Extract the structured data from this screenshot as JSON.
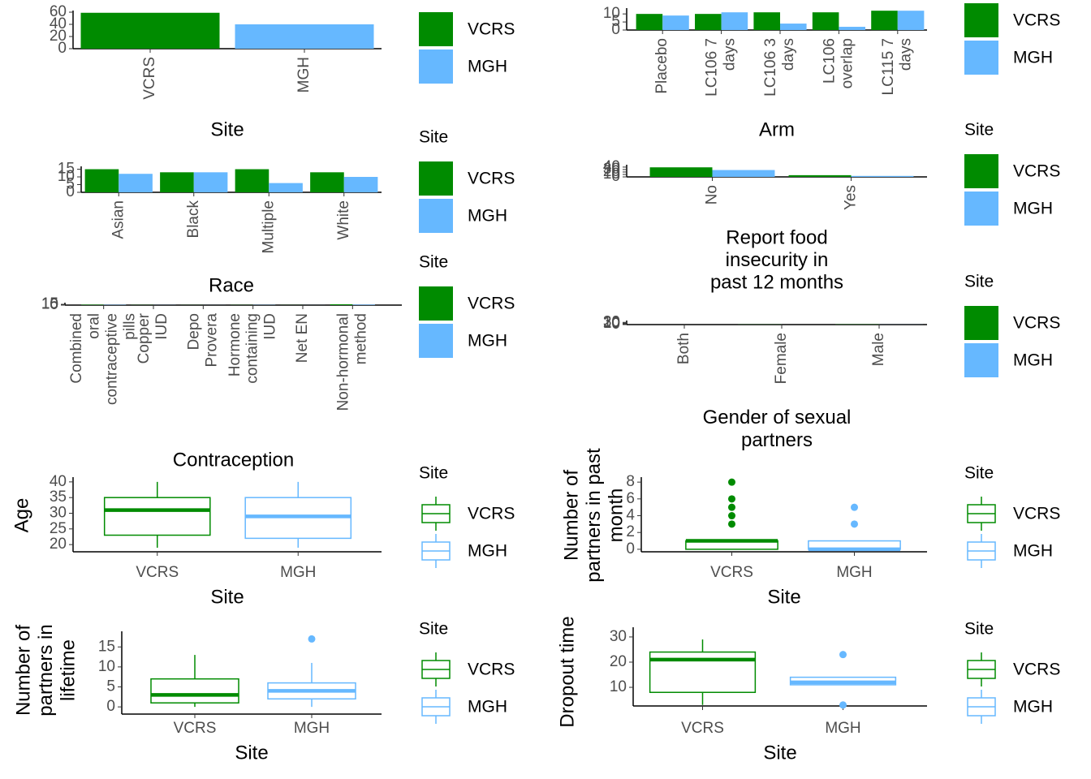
{
  "chart_data": [
    {
      "type": "bar",
      "dodge": false,
      "xlabel": "Site",
      "categories": [
        "VCRS",
        "MGH"
      ],
      "series": [
        {
          "name": "VCRS",
          "color": "#008b00",
          "values": [
            59,
            null
          ]
        },
        {
          "name": "MGH",
          "color": "#66b8ff",
          "values": [
            null,
            40
          ]
        }
      ],
      "ylim": [
        0,
        60
      ],
      "yticks": [
        0,
        20,
        40,
        60
      ]
    },
    {
      "type": "bar",
      "dodge": true,
      "xlabel": "Race",
      "legend_title": "Site",
      "categories": [
        "Asian",
        "Black",
        "Multiple",
        "White"
      ],
      "series": [
        {
          "name": "VCRS",
          "color": "#008b00",
          "values": [
            15,
            13,
            15,
            13
          ]
        },
        {
          "name": "MGH",
          "color": "#66b8ff",
          "values": [
            12,
            13,
            6,
            10
          ]
        }
      ],
      "ylim": [
        0,
        15.8
      ],
      "yticks": [
        0,
        5,
        10,
        15
      ]
    },
    {
      "type": "bar",
      "dodge": true,
      "xlabel": "Contraception",
      "legend_title": "Site",
      "categories": [
        "Combined\noral\ncontraceptive\npills",
        "Copper\nIUD",
        "Depo\nProvera",
        "Hormone\ncontaining\nIUD",
        "Net EN",
        "Non-hormonal\nmethod"
      ],
      "series": [
        {
          "name": "VCRS",
          "color": "#008b00",
          "values": [
            8,
            3,
            2,
            3,
            2,
            16
          ]
        },
        {
          "name": "MGH",
          "color": "#66b8ff",
          "values": [
            6,
            2,
            1,
            4,
            1,
            10
          ]
        }
      ],
      "ylim": [
        0,
        16
      ],
      "yticks": [
        0,
        5,
        10,
        15
      ]
    },
    {
      "type": "box",
      "xlabel": "Site",
      "ylabel": "Age",
      "legend_title": "Site",
      "categories": [
        "VCRS",
        "MGH"
      ],
      "series": [
        {
          "name": "VCRS",
          "color": "#008b00",
          "min": 19,
          "q1": 23,
          "median": 31,
          "q3": 35,
          "max": 40,
          "outliers": []
        },
        {
          "name": "MGH",
          "color": "#66b8ff",
          "min": 19,
          "q1": 22,
          "median": 29,
          "q3": 35,
          "max": 40,
          "outliers": []
        }
      ],
      "ylim": [
        17.7,
        41
      ],
      "yticks": [
        20,
        25,
        30,
        35,
        40
      ]
    },
    {
      "type": "box",
      "xlabel": "Site",
      "ylabel": "Number of\npartners in\nlifetime",
      "legend_title": "Site",
      "categories": [
        "VCRS",
        "MGH"
      ],
      "series": [
        {
          "name": "VCRS",
          "color": "#008b00",
          "min": 0,
          "q1": 1,
          "median": 3,
          "q3": 7,
          "max": 13,
          "outliers": []
        },
        {
          "name": "MGH",
          "color": "#66b8ff",
          "min": 0,
          "q1": 2,
          "median": 4,
          "q3": 6,
          "max": 11,
          "outliers": [
            17
          ]
        }
      ],
      "ylim": [
        -1.8,
        18.5
      ],
      "yticks": [
        0,
        5,
        10,
        15
      ]
    },
    {
      "type": "bar",
      "dodge": true,
      "xlabel": "Arm",
      "categories": [
        "Placebo",
        "LC106 7\ndays",
        "LC106 3\ndays",
        "LC106\noverlap",
        "LC115 7\ndays"
      ],
      "series": [
        {
          "name": "VCRS",
          "color": "#008b00",
          "values": [
            10,
            10,
            11,
            11,
            12
          ]
        },
        {
          "name": "MGH",
          "color": "#66b8ff",
          "values": [
            9,
            11,
            4,
            2,
            12
          ]
        }
      ],
      "ylim": [
        0,
        12.6
      ],
      "yticks": [
        0,
        5,
        10
      ]
    },
    {
      "type": "bar",
      "dodge": true,
      "xlabel": "Report food\ninsecurity in\npast 12 months",
      "legend_title": "Site",
      "categories": [
        "No",
        "Yes"
      ],
      "series": [
        {
          "name": "VCRS",
          "color": "#008b00",
          "values": [
            39,
            7
          ]
        },
        {
          "name": "MGH",
          "color": "#66b8ff",
          "values": [
            28,
            4
          ]
        }
      ],
      "ylim": [
        0,
        43
      ],
      "yticks": [
        0,
        10,
        20,
        30,
        40
      ]
    },
    {
      "type": "bar",
      "dodge": true,
      "xlabel": "Gender of sexual\npartners",
      "legend_title": "Site",
      "categories": [
        "Both",
        "Female",
        "Male"
      ],
      "series": [
        {
          "name": "VCRS",
          "color": "#008b00",
          "values": [
            0,
            2,
            3
          ]
        },
        {
          "name": "MGH",
          "color": "#66b8ff",
          "values": [
            0,
            0,
            1
          ]
        }
      ],
      "ylim": [
        0,
        33
      ],
      "yticks": [
        0,
        10,
        20,
        30
      ]
    },
    {
      "type": "box",
      "xlabel": "Site",
      "ylabel": "Number of\npartners in past\nmonth",
      "legend_title": "Site",
      "categories": [
        "VCRS",
        "MGH"
      ],
      "series": [
        {
          "name": "VCRS",
          "color": "#008b00",
          "min": 0,
          "q1": 0,
          "median": 1,
          "q3": 1,
          "max": 1,
          "outliers": [
            3,
            4,
            5,
            6,
            8
          ]
        },
        {
          "name": "MGH",
          "color": "#66b8ff",
          "min": 0,
          "q1": 0,
          "median": 0,
          "q3": 1,
          "max": 1,
          "outliers": [
            3,
            5
          ]
        }
      ],
      "ylim": [
        -0.3,
        8.4
      ],
      "yticks": [
        0,
        2,
        4,
        6,
        8
      ]
    },
    {
      "type": "box",
      "xlabel": "Site",
      "ylabel": "Dropout time",
      "legend_title": "Site",
      "categories": [
        "VCRS",
        "MGH"
      ],
      "series": [
        {
          "name": "VCRS",
          "color": "#008b00",
          "min": 3,
          "q1": 8,
          "median": 21,
          "q3": 24,
          "max": 29,
          "outliers": []
        },
        {
          "name": "MGH",
          "color": "#66b8ff",
          "min": 11,
          "q1": 11,
          "median": 12,
          "q3": 14,
          "max": 14,
          "outliers": [
            23,
            3
          ]
        }
      ],
      "ylim": [
        2.6,
        33.2
      ],
      "yticks": [
        10,
        20,
        30
      ]
    }
  ]
}
